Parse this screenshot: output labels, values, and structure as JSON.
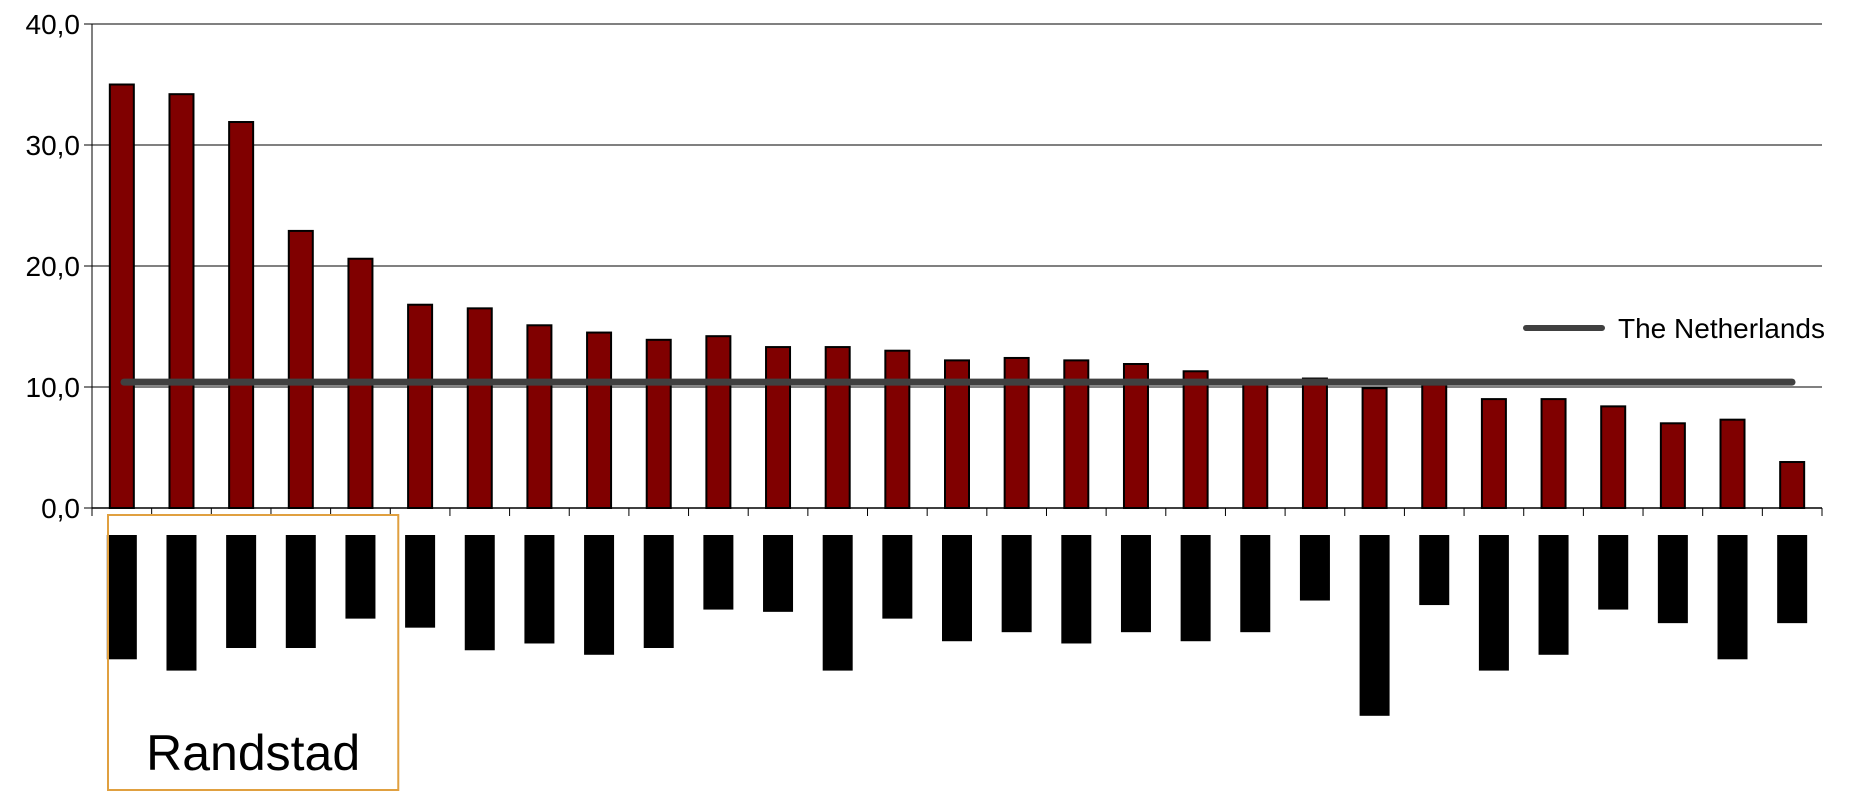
{
  "chart_data": {
    "type": "bar",
    "ylim": [
      0,
      40
    ],
    "y_ticks": [
      "0,0",
      "10,0",
      "20,0",
      "30,0",
      "40,0"
    ],
    "y_tick_values": [
      0,
      10,
      20,
      30,
      40
    ],
    "grid": true,
    "series": [
      {
        "values": [
          35.0,
          34.2,
          31.9,
          22.9,
          20.6,
          16.8,
          16.5,
          15.1,
          14.5,
          13.9,
          14.2,
          13.3,
          13.3,
          13.0,
          12.2,
          12.4,
          12.2,
          11.9,
          11.3,
          10.4,
          10.7,
          9.9,
          10.2,
          9.0,
          9.0,
          8.4,
          7.0,
          7.3,
          3.8
        ],
        "color": "#800000"
      }
    ],
    "black_bar_relative_lengths": [
      0.55,
      0.6,
      0.5,
      0.5,
      0.37,
      0.41,
      0.51,
      0.48,
      0.53,
      0.5,
      0.33,
      0.34,
      0.6,
      0.37,
      0.47,
      0.43,
      0.48,
      0.43,
      0.47,
      0.43,
      0.29,
      0.8,
      0.31,
      0.6,
      0.53,
      0.33,
      0.39,
      0.55,
      0.39
    ],
    "reference_line": {
      "name": "The Netherlands",
      "value": 10.4,
      "color": "#404040"
    },
    "legend": {
      "label": "The Netherlands",
      "placement": "right"
    },
    "highlight_group": {
      "label": "Randstad",
      "count": 5,
      "border_color": "#e0a040"
    }
  }
}
